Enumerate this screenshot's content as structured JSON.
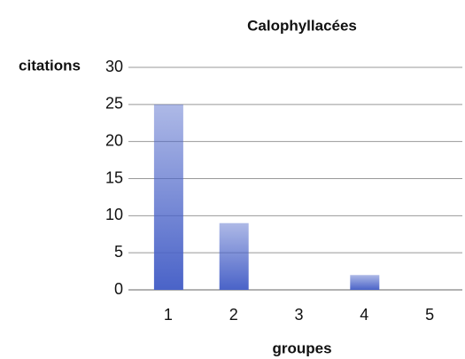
{
  "chart_data": {
    "type": "bar",
    "title": "Calophyllacées",
    "y_label": "citations",
    "x_label": "groupes",
    "categories": [
      "1",
      "2",
      "3",
      "4",
      "5"
    ],
    "values": [
      25,
      9,
      0,
      2,
      0
    ],
    "color": "#4a63c8",
    "ylim": [
      0,
      30
    ],
    "yticks": [
      0,
      5,
      10,
      15,
      20,
      25,
      30
    ],
    "grid": true
  }
}
